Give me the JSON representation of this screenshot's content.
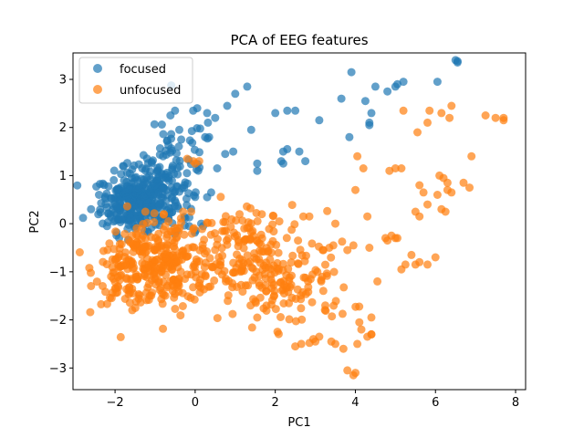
{
  "chart_data": {
    "type": "scatter",
    "title": "PCA of EEG features",
    "xlabel": "PC1",
    "ylabel": "PC2",
    "xlim": [
      -3.05,
      8.25
    ],
    "ylim": [
      -3.45,
      3.55
    ],
    "xticks": [
      -2,
      0,
      2,
      4,
      6,
      8
    ],
    "yticks": [
      -3,
      -2,
      -1,
      0,
      1,
      2,
      3
    ],
    "xtick_labels": [
      "−2",
      "0",
      "2",
      "4",
      "6",
      "8"
    ],
    "ytick_labels": [
      "−3",
      "−2",
      "−1",
      "0",
      "1",
      "2",
      "3"
    ],
    "grid": false,
    "legend_position": "top-left",
    "series": [
      {
        "name": "focused",
        "color": "#1f77b4",
        "clusters": [
          {
            "cx": -1.55,
            "cy": 0.45,
            "sx": 0.4,
            "sy": 0.3,
            "n": 240
          },
          {
            "cx": -1.0,
            "cy": 0.75,
            "sx": 0.45,
            "sy": 0.35,
            "n": 120
          },
          {
            "cx": -0.4,
            "cy": 1.4,
            "sx": 0.45,
            "sy": 0.45,
            "n": 45
          },
          {
            "cx": -0.6,
            "cy": 0.2,
            "sx": 0.4,
            "sy": 0.25,
            "n": 30
          }
        ],
        "extra_points": [
          [
            -2.8,
            0.12
          ],
          [
            -2.6,
            0.3
          ],
          [
            -2.2,
            -0.05
          ],
          [
            -2.4,
            0.6
          ],
          [
            -1.9,
            -0.3
          ],
          [
            -1.5,
            -0.1
          ],
          [
            0.05,
            2.4
          ],
          [
            0.3,
            2.3
          ],
          [
            0.5,
            2.2
          ],
          [
            0.8,
            2.45
          ],
          [
            1.0,
            2.7
          ],
          [
            1.3,
            2.85
          ],
          [
            2.0,
            2.3
          ],
          [
            2.3,
            2.35
          ],
          [
            2.5,
            2.35
          ],
          [
            3.1,
            2.15
          ],
          [
            3.65,
            2.6
          ],
          [
            3.9,
            3.15
          ],
          [
            4.25,
            2.55
          ],
          [
            4.35,
            2.1
          ],
          [
            4.4,
            2.3
          ],
          [
            4.35,
            2.05
          ],
          [
            4.5,
            2.85
          ],
          [
            4.8,
            2.75
          ],
          [
            5.0,
            2.85
          ],
          [
            5.05,
            2.9
          ],
          [
            5.2,
            2.95
          ],
          [
            6.05,
            2.95
          ],
          [
            6.5,
            3.4
          ],
          [
            6.55,
            3.35
          ],
          [
            6.55,
            3.38
          ],
          [
            1.4,
            1.95
          ],
          [
            1.55,
            1.25
          ],
          [
            1.55,
            1.1
          ],
          [
            2.2,
            1.5
          ],
          [
            2.15,
            1.3
          ],
          [
            2.3,
            1.55
          ],
          [
            2.2,
            1.25
          ],
          [
            2.6,
            1.5
          ],
          [
            3.85,
            1.8
          ],
          [
            2.75,
            1.3
          ],
          [
            0.75,
            1.45
          ],
          [
            0.95,
            1.5
          ],
          [
            0.35,
            1.8
          ],
          [
            0.25,
            1.8
          ],
          [
            -0.05,
            2.35
          ],
          [
            0.55,
            1.15
          ],
          [
            0.4,
            0.65
          ],
          [
            0.3,
            0.55
          ],
          [
            0.15,
            0.0
          ],
          [
            0.2,
            -0.05
          ],
          [
            -0.15,
            -0.05
          ]
        ]
      },
      {
        "name": "unfocused",
        "color": "#ff7f0e",
        "clusters": [
          {
            "cx": -1.6,
            "cy": -0.95,
            "sx": 0.45,
            "sy": 0.35,
            "n": 120
          },
          {
            "cx": -0.7,
            "cy": -0.9,
            "sx": 0.55,
            "sy": 0.45,
            "n": 170
          },
          {
            "cx": 0.9,
            "cy": -0.85,
            "sx": 0.75,
            "sy": 0.5,
            "n": 130
          },
          {
            "cx": 2.5,
            "cy": -1.3,
            "sx": 0.7,
            "sy": 0.45,
            "n": 100
          },
          {
            "cx": 1.2,
            "cy": -0.1,
            "sx": 0.8,
            "sy": 0.3,
            "n": 45
          },
          {
            "cx": -0.9,
            "cy": -0.2,
            "sx": 0.5,
            "sy": 0.25,
            "n": 30
          }
        ],
        "extra_points": [
          [
            -0.2,
            1.35
          ],
          [
            -0.05,
            1.3
          ],
          [
            0.0,
            1.25
          ],
          [
            0.1,
            1.3
          ],
          [
            -0.3,
            0.25
          ],
          [
            -0.1,
            0.25
          ],
          [
            5.2,
            2.35
          ],
          [
            5.55,
            1.9
          ],
          [
            5.8,
            2.1
          ],
          [
            5.85,
            2.35
          ],
          [
            6.15,
            2.3
          ],
          [
            6.35,
            2.2
          ],
          [
            6.4,
            2.45
          ],
          [
            7.25,
            2.25
          ],
          [
            7.7,
            2.2
          ],
          [
            7.7,
            2.15
          ],
          [
            7.5,
            2.2
          ],
          [
            4.05,
            1.4
          ],
          [
            4.2,
            1.15
          ],
          [
            4.0,
            0.7
          ],
          [
            4.85,
            1.1
          ],
          [
            5.0,
            1.15
          ],
          [
            5.15,
            1.15
          ],
          [
            5.6,
            0.8
          ],
          [
            5.7,
            0.65
          ],
          [
            6.1,
            1.0
          ],
          [
            6.2,
            0.95
          ],
          [
            6.3,
            0.85
          ],
          [
            6.3,
            0.7
          ],
          [
            6.4,
            0.65
          ],
          [
            6.05,
            0.6
          ],
          [
            6.7,
            0.85
          ],
          [
            6.85,
            0.75
          ],
          [
            6.9,
            1.4
          ],
          [
            6.15,
            0.3
          ],
          [
            6.25,
            0.25
          ],
          [
            5.5,
            0.25
          ],
          [
            5.6,
            0.15
          ],
          [
            5.8,
            0.4
          ],
          [
            4.3,
            0.15
          ],
          [
            3.5,
            0.0
          ],
          [
            2.85,
            0.15
          ],
          [
            2.7,
            0.15
          ],
          [
            5.4,
            -0.65
          ],
          [
            5.5,
            -0.85
          ],
          [
            5.6,
            -0.8
          ],
          [
            5.8,
            -0.85
          ],
          [
            6.0,
            -0.7
          ],
          [
            5.25,
            -0.85
          ],
          [
            5.15,
            -0.95
          ],
          [
            4.75,
            -0.3
          ],
          [
            4.8,
            -0.35
          ],
          [
            5.0,
            -0.3
          ],
          [
            4.9,
            -0.25
          ],
          [
            5.05,
            -0.3
          ],
          [
            4.55,
            -1.2
          ],
          [
            4.4,
            -1.95
          ],
          [
            4.1,
            -2.05
          ],
          [
            4.15,
            -2.2
          ],
          [
            4.3,
            -2.35
          ],
          [
            4.4,
            -2.3
          ],
          [
            4.05,
            -2.5
          ],
          [
            4.4,
            -2.3
          ],
          [
            3.7,
            -2.6
          ],
          [
            3.8,
            -3.05
          ],
          [
            4.0,
            -3.1
          ],
          [
            3.95,
            -3.15
          ],
          [
            3.5,
            -2.5
          ],
          [
            3.4,
            -2.45
          ],
          [
            2.65,
            -2.5
          ],
          [
            2.5,
            -2.55
          ],
          [
            3.0,
            -2.45
          ],
          [
            2.95,
            -2.4
          ],
          [
            3.1,
            -2.35
          ],
          [
            3.25,
            -1.7
          ],
          [
            3.45,
            -0.45
          ],
          [
            3.35,
            -0.5
          ],
          [
            3.8,
            -0.55
          ],
          [
            3.95,
            -0.45
          ],
          [
            4.35,
            -0.5
          ],
          [
            3.05,
            -1.0
          ],
          [
            3.15,
            -1.2
          ]
        ]
      }
    ]
  }
}
